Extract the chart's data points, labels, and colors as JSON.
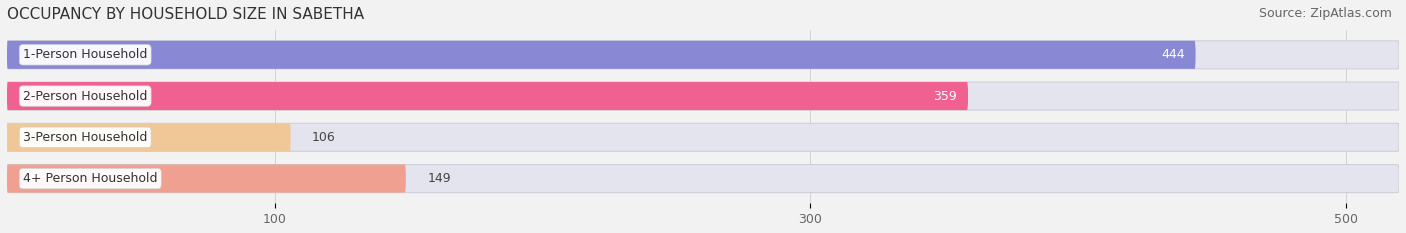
{
  "title": "OCCUPANCY BY HOUSEHOLD SIZE IN SABETHA",
  "source": "Source: ZipAtlas.com",
  "categories": [
    "1-Person Household",
    "2-Person Household",
    "3-Person Household",
    "4+ Person Household"
  ],
  "values": [
    444,
    359,
    106,
    149
  ],
  "bar_colors": [
    "#8888d4",
    "#f06090",
    "#f0c898",
    "#f0a090"
  ],
  "bar_edge_colors": [
    "#8888d4",
    "#f06090",
    "#f0c898",
    "#f0a090"
  ],
  "label_colors": [
    "white",
    "white",
    "#333333",
    "#333333"
  ],
  "xlim": [
    0,
    520
  ],
  "xticks": [
    100,
    300,
    500
  ],
  "background_color": "#f2f2f2",
  "bar_bg_color": "#e4e4ee",
  "title_fontsize": 11,
  "source_fontsize": 9,
  "label_fontsize": 9,
  "value_fontsize": 9
}
